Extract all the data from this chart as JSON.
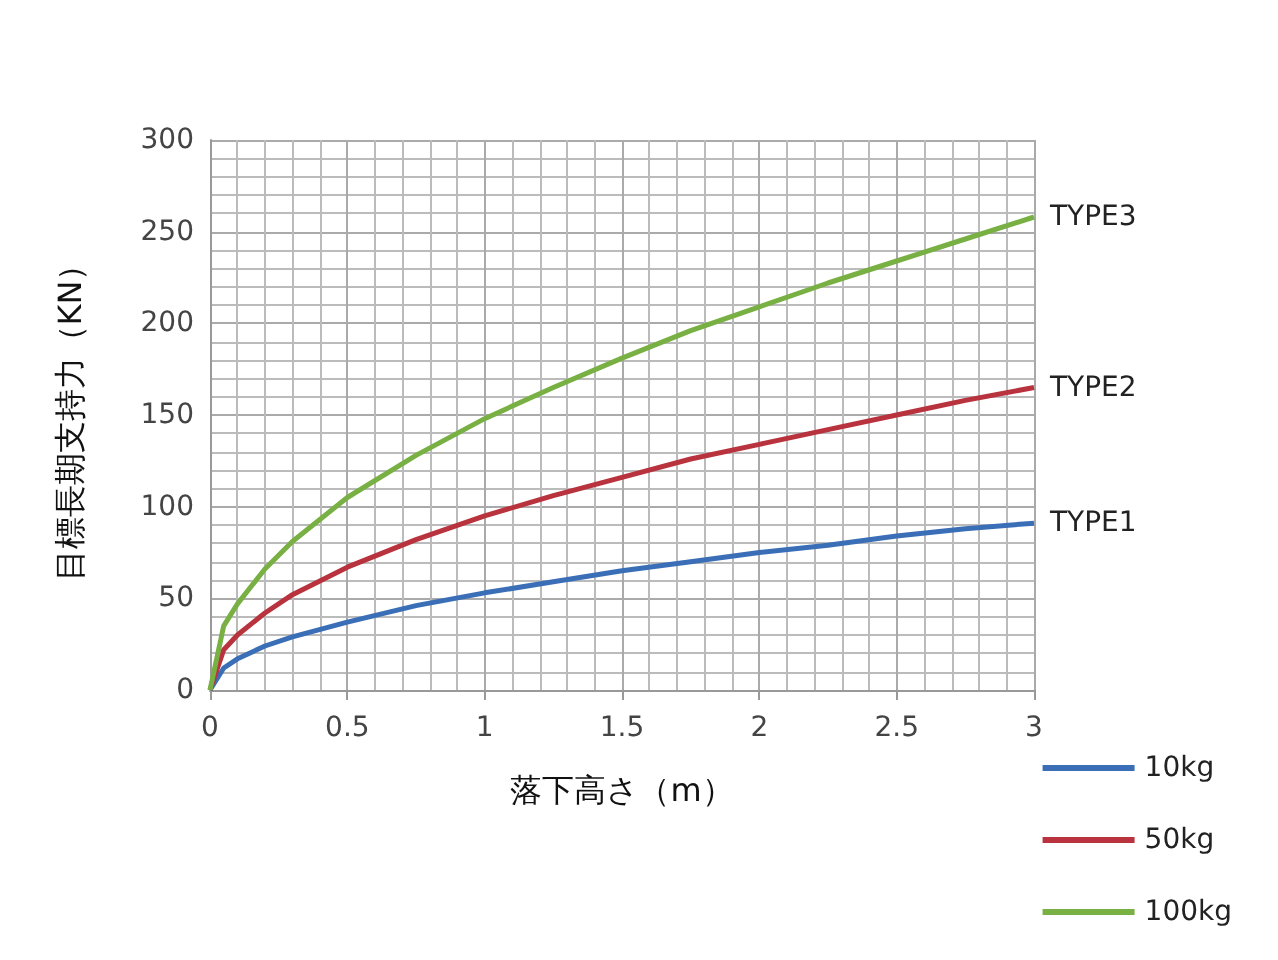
{
  "chart_data": {
    "type": "line",
    "xlabel": "落下高さ（m）",
    "ylabel": "目標長期支持力（KN）",
    "x": [
      0,
      0.05,
      0.1,
      0.2,
      0.3,
      0.5,
      0.75,
      1,
      1.25,
      1.5,
      1.75,
      2,
      2.25,
      2.5,
      2.75,
      3
    ],
    "series": [
      {
        "name": "10kg",
        "color": "#3a6fb7",
        "values": [
          0,
          12,
          17,
          24,
          29,
          37,
          46,
          53,
          59,
          65,
          70,
          75,
          79,
          84,
          88,
          91
        ]
      },
      {
        "name": "50kg",
        "color": "#b8333d",
        "values": [
          0,
          22,
          30,
          42,
          52,
          67,
          82,
          95,
          106,
          116,
          126,
          134,
          142,
          150,
          158,
          165
        ]
      },
      {
        "name": "100kg",
        "color": "#78b043",
        "values": [
          0,
          35,
          47,
          66,
          81,
          105,
          128,
          148,
          165,
          181,
          196,
          209,
          222,
          234,
          246,
          258
        ]
      }
    ],
    "xlim": [
      0,
      3
    ],
    "xticks": [
      0,
      0.5,
      1,
      1.5,
      2,
      2.5,
      3
    ],
    "ylim": [
      0,
      300
    ],
    "yticks": [
      0,
      50,
      100,
      150,
      200,
      250,
      300
    ],
    "grid": true,
    "legend": "bottom right",
    "marker": "none",
    "line_style": "solid",
    "annotations": [
      "TYPE1",
      "TYPE2",
      "TYPE3"
    ]
  }
}
